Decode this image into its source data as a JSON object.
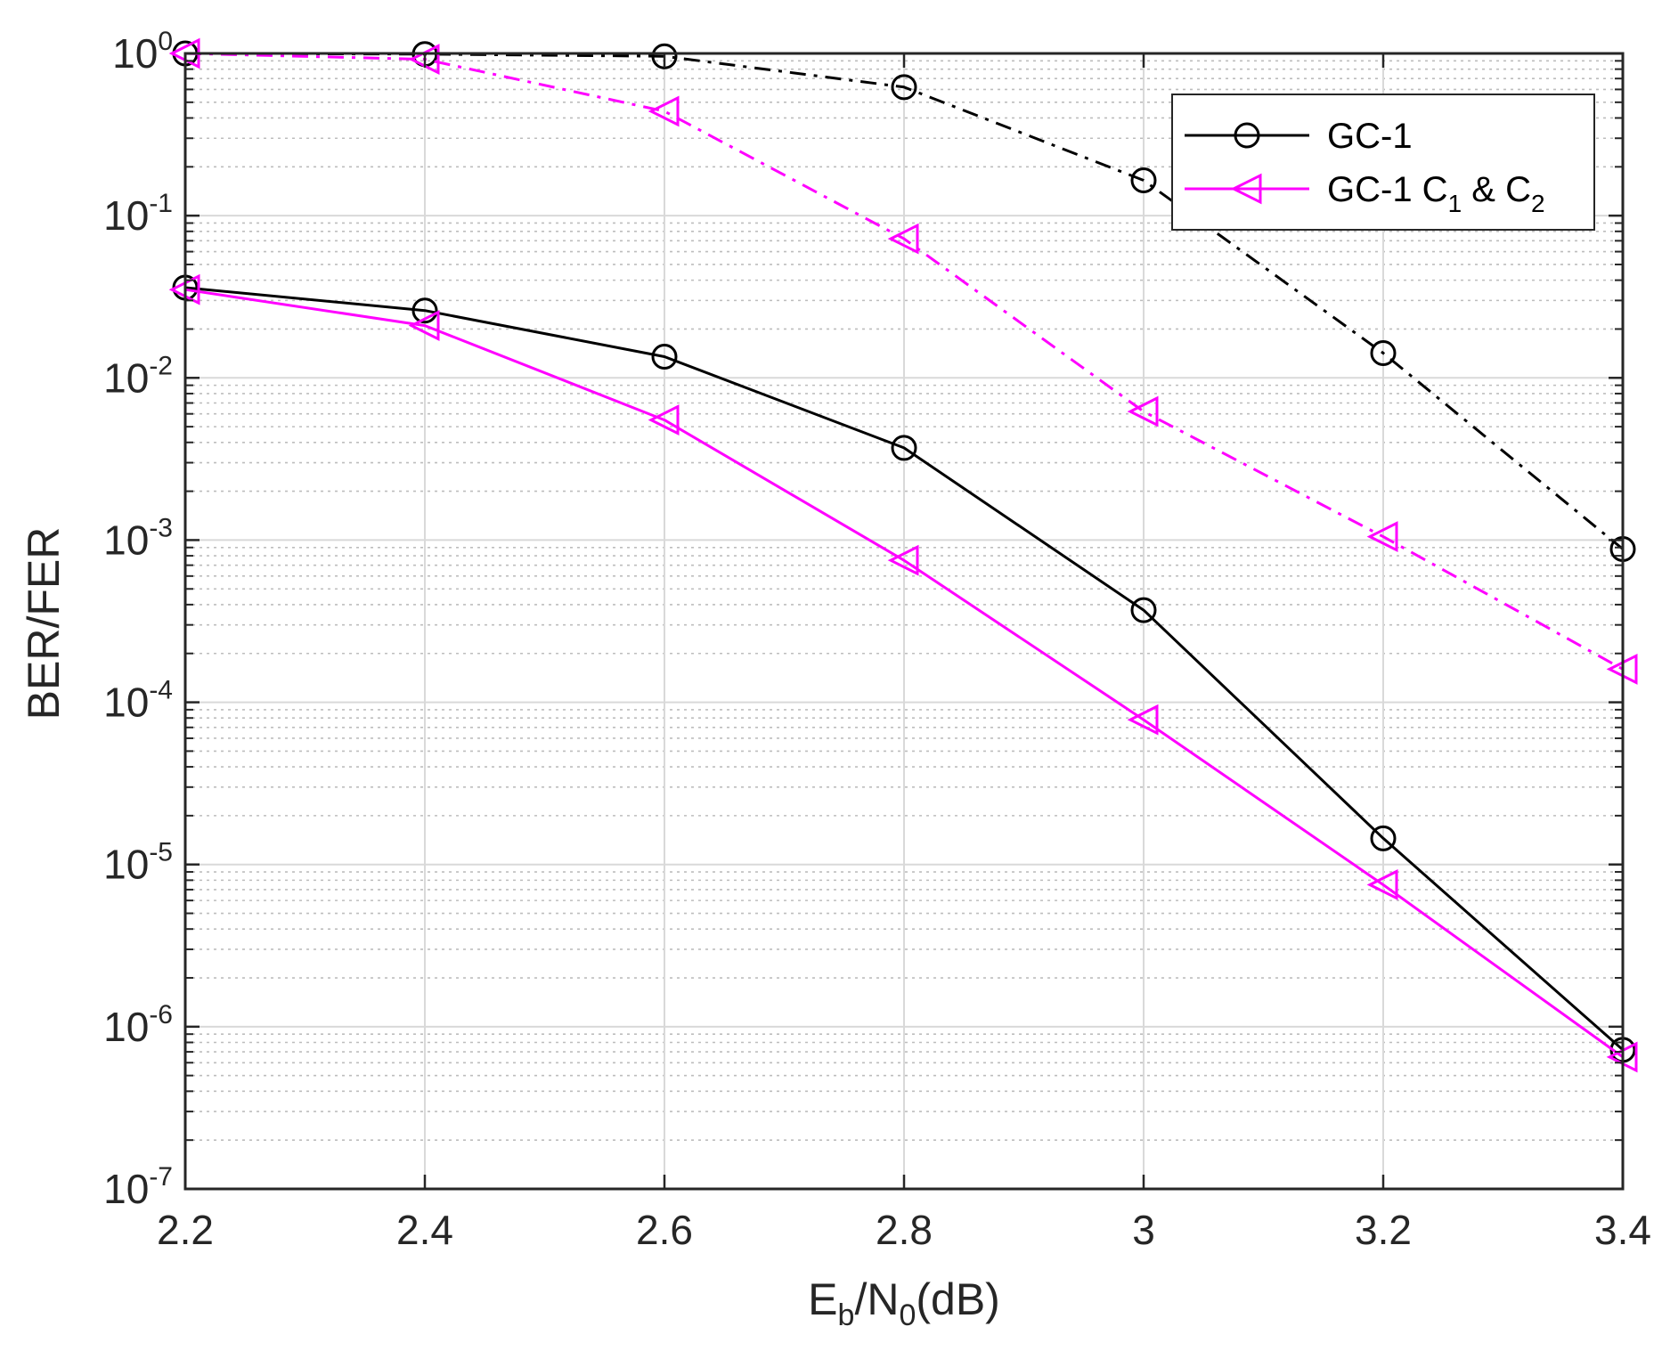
{
  "chart_data": {
    "type": "line",
    "title": "",
    "xlabel": {
      "main": "E",
      "sub1": "b",
      "mid": "/N",
      "sub2": "0",
      "tail": "(dB)"
    },
    "ylabel": "BER/FER",
    "xlim": [
      2.2,
      3.4
    ],
    "ylim": [
      1e-07,
      1
    ],
    "yscale": "log",
    "grid": true,
    "minor_grid": true,
    "x_ticks": [
      2.2,
      2.4,
      2.6,
      2.8,
      3,
      3.2,
      3.4
    ],
    "x_tick_labels": [
      "2.2",
      "2.4",
      "2.6",
      "2.8",
      "3",
      "3.2",
      "3.4"
    ],
    "y_ticks": [
      {
        "value": 1,
        "base": "10",
        "exp": "0"
      },
      {
        "value": 0.1,
        "base": "10",
        "exp": "-1"
      },
      {
        "value": 0.01,
        "base": "10",
        "exp": "-2"
      },
      {
        "value": 0.001,
        "base": "10",
        "exp": "-3"
      },
      {
        "value": 0.0001,
        "base": "10",
        "exp": "-4"
      },
      {
        "value": 1e-05,
        "base": "10",
        "exp": "-5"
      },
      {
        "value": 1e-06,
        "base": "10",
        "exp": "-6"
      },
      {
        "value": 1e-07,
        "base": "10",
        "exp": "-7"
      }
    ],
    "legend": {
      "position": "top-right",
      "entries": [
        {
          "series": 0,
          "label": "GC-1",
          "label_sub_parts": []
        },
        {
          "series": 1,
          "label": "GC-1 C",
          "label_sub_parts": [
            {
              "text": "GC-1 C",
              "sub": false
            },
            {
              "text": "1",
              "sub": true
            },
            {
              "text": " & C",
              "sub": false
            },
            {
              "text": "2",
              "sub": true
            }
          ]
        }
      ]
    },
    "x": [
      2.2,
      2.4,
      2.6,
      2.8,
      3,
      3.2,
      3.4
    ],
    "series": [
      {
        "name": "GC-1",
        "group": "BER",
        "color": "#000000",
        "line": "solid",
        "marker": "circle",
        "values": [
          0.036,
          0.026,
          0.0135,
          0.0037,
          0.00037,
          1.45e-05,
          7.2e-07
        ]
      },
      {
        "name": "GC-1 C1 & C2",
        "group": "BER",
        "color": "#ff00ff",
        "line": "solid",
        "marker": "triangle-left",
        "values": [
          0.035,
          0.021,
          0.0055,
          0.00075,
          7.8e-05,
          7.5e-06,
          6.5e-07
        ]
      },
      {
        "name": "GC-1",
        "group": "FER",
        "color": "#000000",
        "line": "dashdot",
        "marker": "circle",
        "values": [
          1.0,
          0.99,
          0.96,
          0.62,
          0.165,
          0.0142,
          0.00088
        ]
      },
      {
        "name": "GC-1 C1 & C2",
        "group": "FER",
        "color": "#ff00ff",
        "line": "dashdot",
        "marker": "triangle-left",
        "values": [
          1.0,
          0.92,
          0.44,
          0.072,
          0.0062,
          0.00105,
          0.00016
        ]
      }
    ]
  }
}
